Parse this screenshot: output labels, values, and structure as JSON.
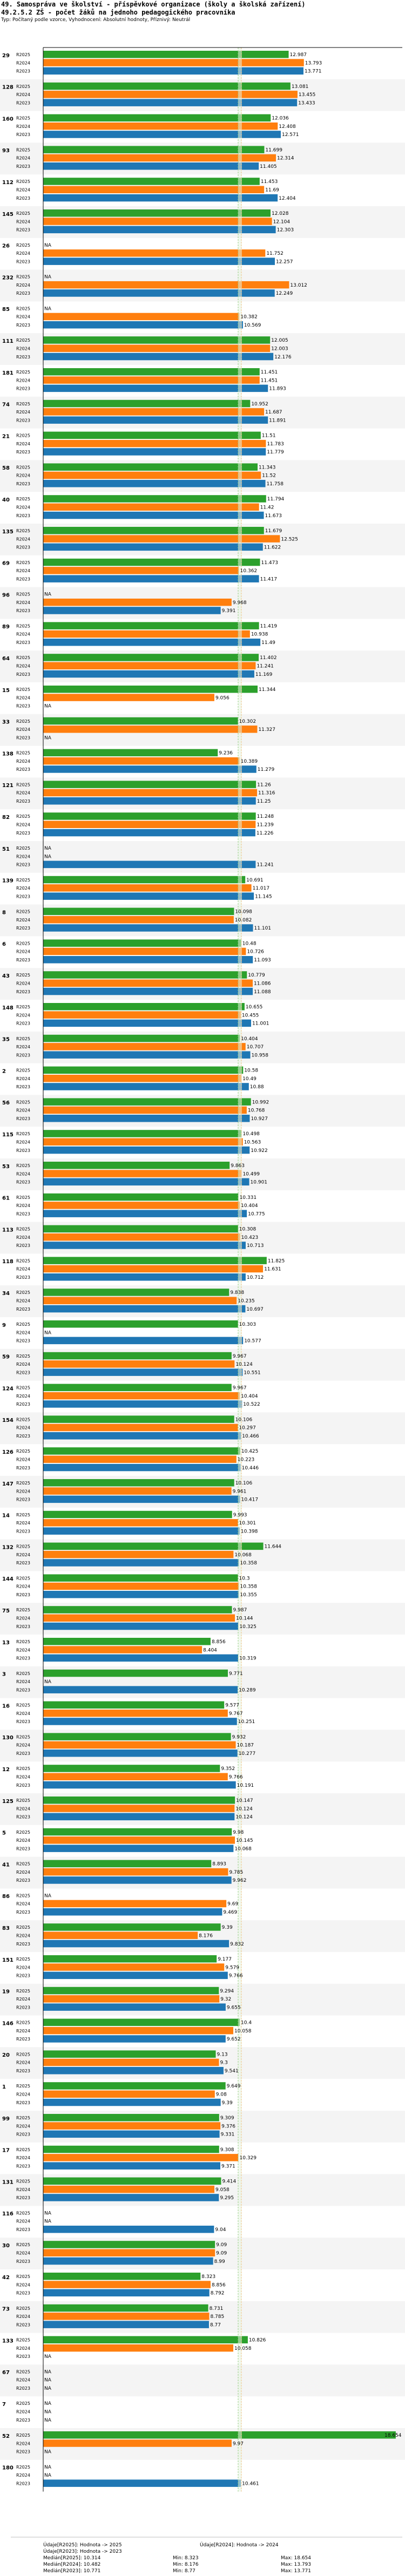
{
  "header": {
    "title_line1": "49. Samospráva ve školství - příspěvkové organizace (školy a školská zařízení)",
    "title_line2": "49.2.5.2 ZŠ - počet žáků na jednoho pedagogického pracovníka",
    "subtitle": "Typ: Počítaný podle vzorce, Vyhodnocení: Absolutní hodnoty, Příznivý: Neutrál"
  },
  "chart_data": {
    "type": "bar",
    "orientation": "horizontal",
    "title": "49.2.5.2 ZŠ - počet žáků na jednoho pedagogického pracovníka",
    "years": [
      "R2025",
      "R2024",
      "R2023"
    ],
    "colors": {
      "R2025": "#2ca02c",
      "R2024": "#ff7f0e",
      "R2023": "#1f77b4"
    },
    "missing_label": "NA",
    "xlim": [
      0,
      19
    ],
    "reference_lines": {
      "median_2025": 10.314,
      "median_2024": 10.482
    },
    "groups": [
      {
        "label": "29",
        "values": [
          12.987,
          13.793,
          13.771
        ]
      },
      {
        "label": "128",
        "values": [
          13.081,
          13.455,
          13.433
        ]
      },
      {
        "label": "160",
        "values": [
          12.036,
          12.408,
          12.571
        ]
      },
      {
        "label": "93",
        "values": [
          11.699,
          12.314,
          11.405
        ]
      },
      {
        "label": "112",
        "values": [
          11.453,
          11.69,
          12.404
        ]
      },
      {
        "label": "145",
        "values": [
          12.028,
          12.104,
          12.303
        ]
      },
      {
        "label": "26",
        "values": [
          null,
          11.752,
          12.257
        ]
      },
      {
        "label": "232",
        "values": [
          null,
          13.012,
          12.249
        ]
      },
      {
        "label": "85",
        "values": [
          null,
          10.382,
          10.569
        ]
      },
      {
        "label": "111",
        "values": [
          12.005,
          12.003,
          12.176
        ]
      },
      {
        "label": "181",
        "values": [
          11.451,
          11.451,
          11.893
        ]
      },
      {
        "label": "74",
        "values": [
          10.952,
          11.687,
          11.891
        ]
      },
      {
        "label": "21",
        "values": [
          11.51,
          11.783,
          11.779
        ]
      },
      {
        "label": "58",
        "values": [
          11.343,
          11.52,
          11.758
        ]
      },
      {
        "label": "40",
        "values": [
          11.794,
          11.42,
          11.673
        ]
      },
      {
        "label": "135",
        "values": [
          11.679,
          12.525,
          11.622
        ]
      },
      {
        "label": "69",
        "values": [
          11.473,
          10.362,
          11.417
        ]
      },
      {
        "label": "96",
        "values": [
          null,
          9.968,
          9.391
        ]
      },
      {
        "label": "89",
        "values": [
          11.419,
          10.938,
          11.49
        ]
      },
      {
        "label": "64",
        "values": [
          11.402,
          11.241,
          11.169
        ]
      },
      {
        "label": "15",
        "values": [
          11.344,
          9.056,
          null
        ]
      },
      {
        "label": "33",
        "values": [
          10.302,
          11.327,
          null
        ]
      },
      {
        "label": "138",
        "values": [
          9.236,
          10.389,
          11.279
        ]
      },
      {
        "label": "121",
        "values": [
          11.26,
          11.316,
          11.25
        ]
      },
      {
        "label": "82",
        "values": [
          11.248,
          11.239,
          11.226
        ]
      },
      {
        "label": "51",
        "values": [
          null,
          null,
          11.241
        ]
      },
      {
        "label": "139",
        "values": [
          10.691,
          11.017,
          11.145
        ]
      },
      {
        "label": "8",
        "values": [
          10.098,
          10.082,
          11.101
        ]
      },
      {
        "label": "6",
        "values": [
          10.48,
          10.726,
          11.093
        ]
      },
      {
        "label": "43",
        "values": [
          10.779,
          11.086,
          11.088
        ]
      },
      {
        "label": "148",
        "values": [
          10.655,
          10.455,
          11.001
        ]
      },
      {
        "label": "35",
        "values": [
          10.404,
          10.707,
          10.958
        ]
      },
      {
        "label": "2",
        "values": [
          10.58,
          10.49,
          10.88
        ]
      },
      {
        "label": "56",
        "values": [
          10.992,
          10.768,
          10.927
        ]
      },
      {
        "label": "115",
        "values": [
          10.498,
          10.563,
          10.922
        ]
      },
      {
        "label": "53",
        "values": [
          9.863,
          10.499,
          10.901
        ]
      },
      {
        "label": "61",
        "values": [
          10.331,
          10.404,
          10.775
        ]
      },
      {
        "label": "113",
        "values": [
          10.308,
          10.423,
          10.713
        ]
      },
      {
        "label": "118",
        "values": [
          11.825,
          11.631,
          10.712
        ]
      },
      {
        "label": "34",
        "values": [
          9.838,
          10.235,
          10.697
        ]
      },
      {
        "label": "9",
        "values": [
          10.303,
          null,
          10.577
        ]
      },
      {
        "label": "59",
        "values": [
          9.967,
          10.124,
          10.551
        ]
      },
      {
        "label": "124",
        "values": [
          9.967,
          10.404,
          10.522
        ]
      },
      {
        "label": "154",
        "values": [
          10.106,
          10.297,
          10.466
        ]
      },
      {
        "label": "126",
        "values": [
          10.425,
          10.223,
          10.446
        ]
      },
      {
        "label": "147",
        "values": [
          10.106,
          9.961,
          10.417
        ]
      },
      {
        "label": "14",
        "values": [
          9.993,
          10.301,
          10.398
        ]
      },
      {
        "label": "132",
        "values": [
          11.644,
          10.068,
          10.358
        ]
      },
      {
        "label": "144",
        "values": [
          10.3,
          10.358,
          10.355
        ]
      },
      {
        "label": "75",
        "values": [
          9.987,
          10.144,
          10.325
        ]
      },
      {
        "label": "13",
        "values": [
          8.856,
          8.404,
          10.319
        ]
      },
      {
        "label": "3",
        "values": [
          9.771,
          null,
          10.289
        ]
      },
      {
        "label": "16",
        "values": [
          9.577,
          9.767,
          10.251
        ]
      },
      {
        "label": "130",
        "values": [
          9.932,
          10.187,
          10.277
        ]
      },
      {
        "label": "12",
        "values": [
          9.352,
          9.766,
          10.191
        ]
      },
      {
        "label": "125",
        "values": [
          10.147,
          10.124,
          10.124
        ]
      },
      {
        "label": "5",
        "values": [
          9.98,
          10.145,
          10.068
        ]
      },
      {
        "label": "41",
        "values": [
          8.893,
          9.785,
          9.962
        ]
      },
      {
        "label": "86",
        "values": [
          null,
          9.69,
          9.469
        ]
      },
      {
        "label": "83",
        "values": [
          9.39,
          8.176,
          9.832
        ]
      },
      {
        "label": "151",
        "values": [
          9.177,
          9.579,
          9.766
        ]
      },
      {
        "label": "19",
        "values": [
          9.294,
          9.32,
          9.655
        ]
      },
      {
        "label": "146",
        "values": [
          10.4,
          10.058,
          9.652
        ]
      },
      {
        "label": "20",
        "values": [
          9.13,
          9.3,
          9.541
        ]
      },
      {
        "label": "1",
        "values": [
          9.649,
          9.08,
          9.39
        ]
      },
      {
        "label": "99",
        "values": [
          9.309,
          9.376,
          9.331
        ]
      },
      {
        "label": "17",
        "values": [
          9.308,
          10.329,
          9.371
        ]
      },
      {
        "label": "131",
        "values": [
          9.414,
          9.058,
          9.295
        ]
      },
      {
        "label": "116",
        "values": [
          null,
          null,
          9.04
        ]
      },
      {
        "label": "30",
        "values": [
          9.09,
          9.09,
          8.99
        ]
      },
      {
        "label": "42",
        "values": [
          8.323,
          8.856,
          8.792
        ]
      },
      {
        "label": "73",
        "values": [
          8.731,
          8.785,
          8.77
        ]
      },
      {
        "label": "133",
        "values": [
          10.826,
          10.058,
          null
        ]
      },
      {
        "label": "67",
        "values": [
          null,
          null,
          null
        ]
      },
      {
        "label": "7",
        "values": [
          null,
          null,
          null
        ]
      },
      {
        "label": "52",
        "values": [
          18.654,
          9.97,
          null
        ]
      },
      {
        "label": "180",
        "values": [
          null,
          null,
          10.461
        ]
      }
    ],
    "legend_entries": [
      "Údaje[R2025]: Hodnota -> 2025",
      "Údaje[R2024]: Hodnota -> 2024",
      "Údaje[R2023]: Hodnota -> 2023"
    ],
    "stats": {
      "r2025": {
        "median": "Medián[R2025]: 10.314",
        "min": "Min: 8.323",
        "max": "Max: 18.654"
      },
      "r2024": {
        "median": "Medián[R2024]: 10.482",
        "min": "Min: 8.176",
        "max": "Max: 13.793"
      },
      "r2023": {
        "median": "Medián[R2023]: 10.771",
        "min": "Min: 8.77",
        "max": "Max: 13.771"
      }
    }
  }
}
